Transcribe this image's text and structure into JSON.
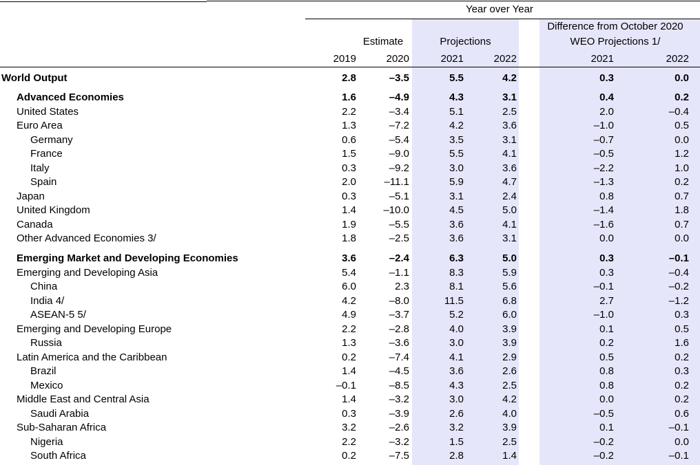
{
  "header": {
    "year_over_year": "Year over Year",
    "estimate": "Estimate",
    "projections": "Projections",
    "difference_line1": "Difference from October 2020",
    "difference_line2": "WEO Projections 1/",
    "years": [
      "2019",
      "2020",
      "2021",
      "2022",
      "2021",
      "2022"
    ]
  },
  "rows": [
    {
      "name": "World Output",
      "level": 0,
      "bold": true,
      "values": [
        "2.8",
        "–3.5",
        "5.5",
        "4.2",
        "0.3",
        "0.0"
      ]
    },
    {
      "name": "Advanced Economies",
      "level": 1,
      "bold": true,
      "values": [
        "1.6",
        "–4.9",
        "4.3",
        "3.1",
        "0.4",
        "0.2"
      ]
    },
    {
      "name": "United States",
      "level": 1,
      "bold": false,
      "values": [
        "2.2",
        "–3.4",
        "5.1",
        "2.5",
        "2.0",
        "–0.4"
      ]
    },
    {
      "name": "Euro Area",
      "level": 1,
      "bold": false,
      "values": [
        "1.3",
        "–7.2",
        "4.2",
        "3.6",
        "–1.0",
        "0.5"
      ]
    },
    {
      "name": "Germany",
      "level": 2,
      "bold": false,
      "values": [
        "0.6",
        "–5.4",
        "3.5",
        "3.1",
        "–0.7",
        "0.0"
      ]
    },
    {
      "name": "France",
      "level": 2,
      "bold": false,
      "values": [
        "1.5",
        "–9.0",
        "5.5",
        "4.1",
        "–0.5",
        "1.2"
      ]
    },
    {
      "name": "Italy",
      "level": 2,
      "bold": false,
      "values": [
        "0.3",
        "–9.2",
        "3.0",
        "3.6",
        "–2.2",
        "1.0"
      ]
    },
    {
      "name": "Spain",
      "level": 2,
      "bold": false,
      "values": [
        "2.0",
        "–11.1",
        "5.9",
        "4.7",
        "–1.3",
        "0.2"
      ]
    },
    {
      "name": "Japan",
      "level": 1,
      "bold": false,
      "values": [
        "0.3",
        "–5.1",
        "3.1",
        "2.4",
        "0.8",
        "0.7"
      ]
    },
    {
      "name": "United Kingdom",
      "level": 1,
      "bold": false,
      "values": [
        "1.4",
        "–10.0",
        "4.5",
        "5.0",
        "–1.4",
        "1.8"
      ]
    },
    {
      "name": "Canada",
      "level": 1,
      "bold": false,
      "values": [
        "1.9",
        "–5.5",
        "3.6",
        "4.1",
        "–1.6",
        "0.7"
      ]
    },
    {
      "name": "Other Advanced Economies 3/",
      "level": 1,
      "bold": false,
      "values": [
        "1.8",
        "–2.5",
        "3.6",
        "3.1",
        "0.0",
        "0.0"
      ]
    },
    {
      "name": "Emerging Market and Developing Economies",
      "level": 1,
      "bold": true,
      "values": [
        "3.6",
        "–2.4",
        "6.3",
        "5.0",
        "0.3",
        "–0.1"
      ]
    },
    {
      "name": "Emerging and Developing Asia",
      "level": 1,
      "bold": false,
      "values": [
        "5.4",
        "–1.1",
        "8.3",
        "5.9",
        "0.3",
        "–0.4"
      ]
    },
    {
      "name": "China",
      "level": 2,
      "bold": false,
      "values": [
        "6.0",
        "2.3",
        "8.1",
        "5.6",
        "–0.1",
        "–0.2"
      ]
    },
    {
      "name": "India 4/",
      "level": 2,
      "bold": false,
      "values": [
        "4.2",
        "–8.0",
        "11.5",
        "6.8",
        "2.7",
        "–1.2"
      ]
    },
    {
      "name": "ASEAN-5 5/",
      "level": 2,
      "bold": false,
      "values": [
        "4.9",
        "–3.7",
        "5.2",
        "6.0",
        "–1.0",
        "0.3"
      ]
    },
    {
      "name": "Emerging and Developing Europe",
      "level": 1,
      "bold": false,
      "values": [
        "2.2",
        "–2.8",
        "4.0",
        "3.9",
        "0.1",
        "0.5"
      ]
    },
    {
      "name": "Russia",
      "level": 2,
      "bold": false,
      "values": [
        "1.3",
        "–3.6",
        "3.0",
        "3.9",
        "0.2",
        "1.6"
      ]
    },
    {
      "name": "Latin America and the Caribbean",
      "level": 1,
      "bold": false,
      "values": [
        "0.2",
        "–7.4",
        "4.1",
        "2.9",
        "0.5",
        "0.2"
      ]
    },
    {
      "name": "Brazil",
      "level": 2,
      "bold": false,
      "values": [
        "1.4",
        "–4.5",
        "3.6",
        "2.6",
        "0.8",
        "0.3"
      ]
    },
    {
      "name": "Mexico",
      "level": 2,
      "bold": false,
      "values": [
        "–0.1",
        "–8.5",
        "4.3",
        "2.5",
        "0.8",
        "0.2"
      ]
    },
    {
      "name": "Middle East and Central Asia",
      "level": 1,
      "bold": false,
      "values": [
        "1.4",
        "–3.2",
        "3.0",
        "4.2",
        "0.0",
        "0.2"
      ]
    },
    {
      "name": "Saudi Arabia",
      "level": 2,
      "bold": false,
      "values": [
        "0.3",
        "–3.9",
        "2.6",
        "4.0",
        "–0.5",
        "0.6"
      ]
    },
    {
      "name": "Sub-Saharan Africa",
      "level": 1,
      "bold": false,
      "values": [
        "3.2",
        "–2.6",
        "3.2",
        "3.9",
        "0.1",
        "–0.1"
      ]
    },
    {
      "name": "Nigeria",
      "level": 2,
      "bold": false,
      "values": [
        "2.2",
        "–3.2",
        "1.5",
        "2.5",
        "–0.2",
        "0.0"
      ]
    },
    {
      "name": "South Africa",
      "level": 2,
      "bold": false,
      "values": [
        "0.2",
        "–7.5",
        "2.8",
        "1.4",
        "–0.2",
        "–0.1"
      ]
    }
  ]
}
